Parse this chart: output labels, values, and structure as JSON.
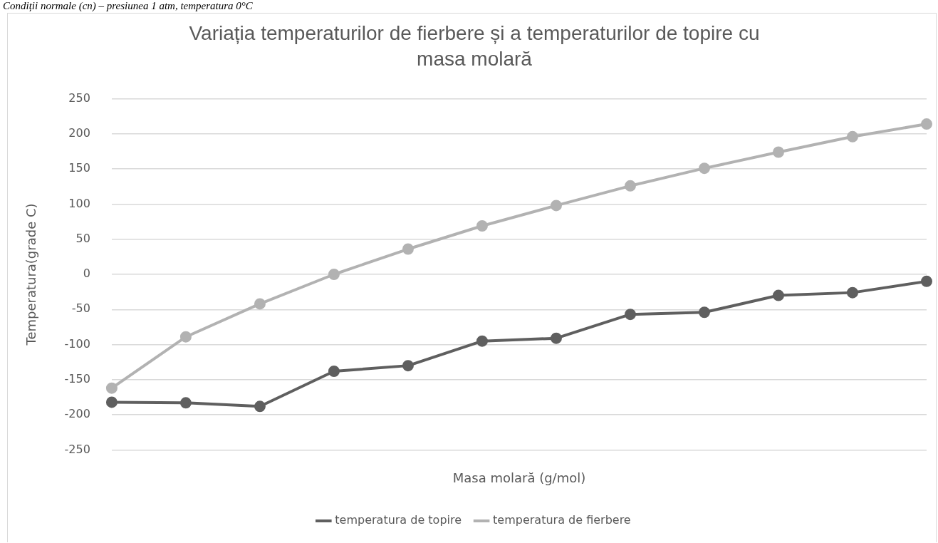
{
  "chart_data": {
    "type": "line",
    "title": "Variația temperaturilor de fierbere și a temperaturilor de topire cu masa molară",
    "xlabel": "Masa molară (g/mol)",
    "ylabel": "Temperatura(grade C)",
    "annotations": [
      "Condiții normale (cn) – presiunea 1 atm, temperatura 0°C"
    ],
    "categories": [
      null,
      null,
      null,
      null,
      null,
      null,
      null,
      null,
      null,
      null,
      null,
      null
    ],
    "series": [
      {
        "name": "temperatura de topire",
        "color": "#5f5f5f",
        "values": [
          -182,
          -183,
          -188,
          -138,
          -130,
          -95,
          -91,
          -57,
          -54,
          -30,
          -26,
          -10
        ]
      },
      {
        "name": "temperatura de fierbere",
        "color": "#b2b2b2",
        "values": [
          -162,
          -89,
          -42,
          0,
          36,
          69,
          98,
          126,
          151,
          174,
          196,
          214
        ]
      }
    ],
    "ylim": [
      -250,
      250
    ],
    "yticks": [
      -250,
      -200,
      -150,
      -100,
      -50,
      0,
      50,
      100,
      150,
      200,
      250
    ],
    "grid": "y",
    "legend": "bottom",
    "marker": "circle",
    "line_style": "solid",
    "tick_labels": "y"
  }
}
